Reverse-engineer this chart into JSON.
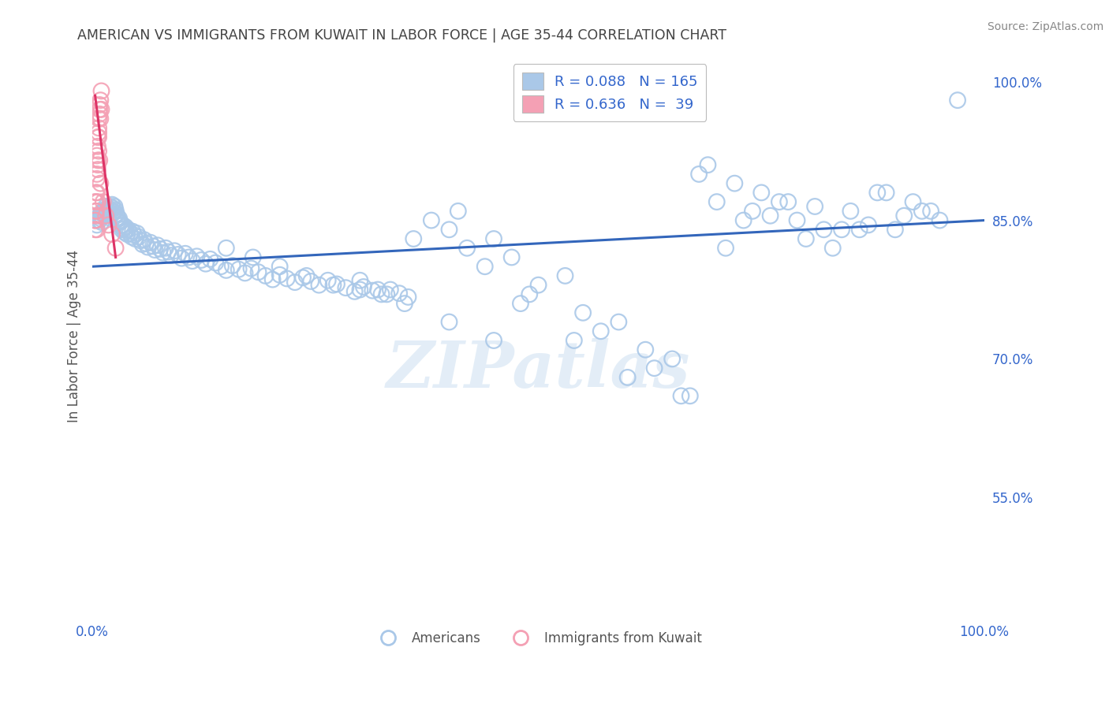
{
  "title": "AMERICAN VS IMMIGRANTS FROM KUWAIT IN LABOR FORCE | AGE 35-44 CORRELATION CHART",
  "source": "Source: ZipAtlas.com",
  "ylabel": "In Labor Force | Age 35-44",
  "xlim": [
    0.0,
    1.0
  ],
  "ylim": [
    0.42,
    1.03
  ],
  "right_yticks": [
    0.55,
    0.7,
    0.85,
    1.0
  ],
  "right_yticklabels": [
    "55.0%",
    "70.0%",
    "85.0%",
    "100.0%"
  ],
  "blue_R": 0.088,
  "blue_N": 165,
  "pink_R": 0.636,
  "pink_N": 39,
  "blue_color": "#aac8e8",
  "pink_color": "#f4a0b4",
  "blue_line_color": "#3366bb",
  "pink_line_color": "#dd3366",
  "background_color": "#ffffff",
  "grid_color": "#cccccc",
  "title_color": "#444444",
  "legend_text_color": "#3366cc",
  "watermark": "ZIPatlas",
  "blue_scatter_x": [
    0.005,
    0.007,
    0.008,
    0.009,
    0.01,
    0.01,
    0.011,
    0.012,
    0.013,
    0.014,
    0.015,
    0.015,
    0.016,
    0.017,
    0.018,
    0.018,
    0.019,
    0.02,
    0.02,
    0.021,
    0.022,
    0.022,
    0.023,
    0.024,
    0.025,
    0.025,
    0.026,
    0.027,
    0.028,
    0.029,
    0.03,
    0.031,
    0.032,
    0.033,
    0.034,
    0.035,
    0.036,
    0.037,
    0.038,
    0.039,
    0.04,
    0.042,
    0.044,
    0.045,
    0.047,
    0.048,
    0.05,
    0.052,
    0.054,
    0.056,
    0.058,
    0.06,
    0.062,
    0.065,
    0.068,
    0.07,
    0.073,
    0.076,
    0.079,
    0.082,
    0.085,
    0.088,
    0.092,
    0.096,
    0.1,
    0.104,
    0.108,
    0.112,
    0.117,
    0.122,
    0.127,
    0.132,
    0.138,
    0.144,
    0.15,
    0.157,
    0.164,
    0.171,
    0.178,
    0.186,
    0.194,
    0.202,
    0.21,
    0.218,
    0.227,
    0.236,
    0.245,
    0.254,
    0.264,
    0.274,
    0.284,
    0.294,
    0.304,
    0.314,
    0.324,
    0.334,
    0.344,
    0.354,
    0.15,
    0.18,
    0.21,
    0.24,
    0.27,
    0.3,
    0.33,
    0.36,
    0.42,
    0.48,
    0.54,
    0.6,
    0.66,
    0.4,
    0.45,
    0.5,
    0.55,
    0.62,
    0.38,
    0.44,
    0.49,
    0.57,
    0.63,
    0.41,
    0.47,
    0.53,
    0.59,
    0.65,
    0.7,
    0.75,
    0.8,
    0.85,
    0.9,
    0.95,
    0.72,
    0.77,
    0.82,
    0.88,
    0.93,
    0.68,
    0.73,
    0.78,
    0.83,
    0.89,
    0.94,
    0.69,
    0.74,
    0.79,
    0.86,
    0.92,
    0.71,
    0.76,
    0.81,
    0.87,
    0.91,
    0.67,
    0.84,
    0.97,
    0.35,
    0.4,
    0.45,
    0.3,
    0.32
  ],
  "blue_scatter_y": [
    0.845,
    0.85,
    0.855,
    0.852,
    0.848,
    0.858,
    0.854,
    0.86,
    0.856,
    0.862,
    0.858,
    0.865,
    0.861,
    0.857,
    0.853,
    0.863,
    0.859,
    0.855,
    0.865,
    0.861,
    0.857,
    0.867,
    0.863,
    0.859,
    0.855,
    0.865,
    0.861,
    0.857,
    0.853,
    0.849,
    0.852,
    0.848,
    0.844,
    0.84,
    0.845,
    0.841,
    0.837,
    0.843,
    0.839,
    0.835,
    0.84,
    0.836,
    0.832,
    0.838,
    0.834,
    0.83,
    0.836,
    0.832,
    0.828,
    0.824,
    0.829,
    0.825,
    0.821,
    0.826,
    0.822,
    0.818,
    0.823,
    0.819,
    0.815,
    0.82,
    0.816,
    0.812,
    0.817,
    0.813,
    0.809,
    0.814,
    0.81,
    0.806,
    0.811,
    0.807,
    0.803,
    0.808,
    0.804,
    0.8,
    0.796,
    0.801,
    0.797,
    0.793,
    0.798,
    0.794,
    0.79,
    0.786,
    0.791,
    0.787,
    0.783,
    0.788,
    0.784,
    0.78,
    0.785,
    0.781,
    0.777,
    0.773,
    0.778,
    0.774,
    0.77,
    0.775,
    0.771,
    0.767,
    0.82,
    0.81,
    0.8,
    0.79,
    0.78,
    0.775,
    0.77,
    0.83,
    0.82,
    0.76,
    0.72,
    0.68,
    0.66,
    0.84,
    0.83,
    0.78,
    0.75,
    0.71,
    0.85,
    0.8,
    0.77,
    0.73,
    0.69,
    0.86,
    0.81,
    0.79,
    0.74,
    0.7,
    0.87,
    0.88,
    0.83,
    0.86,
    0.84,
    0.85,
    0.89,
    0.87,
    0.84,
    0.88,
    0.86,
    0.9,
    0.85,
    0.87,
    0.82,
    0.88,
    0.86,
    0.91,
    0.86,
    0.85,
    0.84,
    0.87,
    0.82,
    0.855,
    0.865,
    0.845,
    0.855,
    0.66,
    0.84,
    0.98,
    0.76,
    0.74,
    0.72,
    0.785,
    0.775
  ],
  "pink_scatter_x": [
    0.003,
    0.004,
    0.005,
    0.006,
    0.007,
    0.008,
    0.009,
    0.01,
    0.004,
    0.005,
    0.006,
    0.007,
    0.008,
    0.003,
    0.004,
    0.006,
    0.007,
    0.005,
    0.006,
    0.008,
    0.004,
    0.005,
    0.007,
    0.003,
    0.006,
    0.009,
    0.004,
    0.007,
    0.01,
    0.005,
    0.008,
    0.003,
    0.006,
    0.009,
    0.012,
    0.015,
    0.018,
    0.022,
    0.026
  ],
  "pink_scatter_y": [
    0.87,
    0.88,
    0.92,
    0.94,
    0.96,
    0.97,
    0.98,
    0.99,
    0.86,
    0.9,
    0.93,
    0.95,
    0.975,
    0.85,
    0.87,
    0.91,
    0.945,
    0.88,
    0.915,
    0.965,
    0.86,
    0.895,
    0.94,
    0.85,
    0.905,
    0.96,
    0.855,
    0.925,
    0.97,
    0.84,
    0.915,
    0.84,
    0.87,
    0.89,
    0.87,
    0.855,
    0.845,
    0.835,
    0.82
  ],
  "blue_trend_x": [
    0.0,
    1.0
  ],
  "blue_trend_y": [
    0.8,
    0.85
  ],
  "pink_trend_x": [
    0.003,
    0.026
  ],
  "pink_trend_y": [
    0.985,
    0.81
  ]
}
